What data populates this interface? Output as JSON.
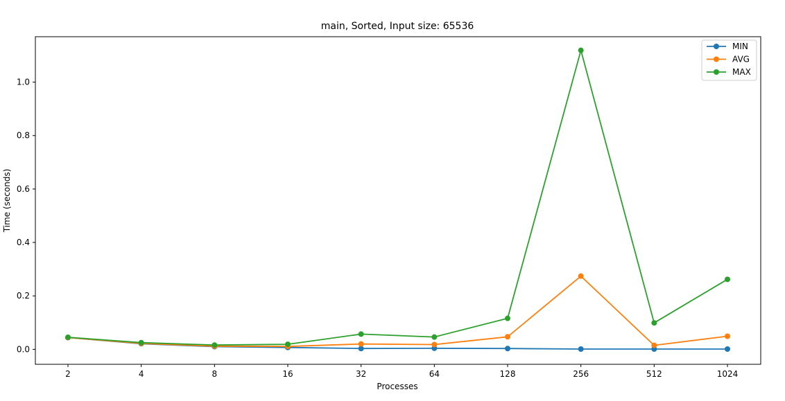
{
  "chart_data": {
    "type": "line",
    "title": "main, Sorted, Input size: 65536",
    "xlabel": "Processes",
    "ylabel": "Time (seconds)",
    "categories": [
      "2",
      "4",
      "8",
      "16",
      "32",
      "64",
      "128",
      "256",
      "512",
      "1024"
    ],
    "ylim": [
      -0.056,
      1.17
    ],
    "yticks": [
      0.0,
      0.2,
      0.4,
      0.6,
      0.8,
      1.0
    ],
    "ytick_labels": [
      "0.0",
      "0.2",
      "0.4",
      "0.6",
      "0.8",
      "1.0"
    ],
    "grid": false,
    "legend_position": "top-right",
    "markers": "circle",
    "series": [
      {
        "name": "MIN",
        "color": "#1f77b4",
        "values": [
          0.044,
          0.021,
          0.01,
          0.007,
          0.003,
          0.004,
          0.003,
          0.001,
          0.001,
          0.001
        ]
      },
      {
        "name": "AVG",
        "color": "#ff7f0e",
        "values": [
          0.044,
          0.022,
          0.012,
          0.011,
          0.02,
          0.018,
          0.047,
          0.274,
          0.015,
          0.049
        ]
      },
      {
        "name": "MAX",
        "color": "#2ca02c",
        "values": [
          0.045,
          0.025,
          0.016,
          0.019,
          0.057,
          0.046,
          0.116,
          1.119,
          0.099,
          0.262
        ]
      }
    ]
  }
}
